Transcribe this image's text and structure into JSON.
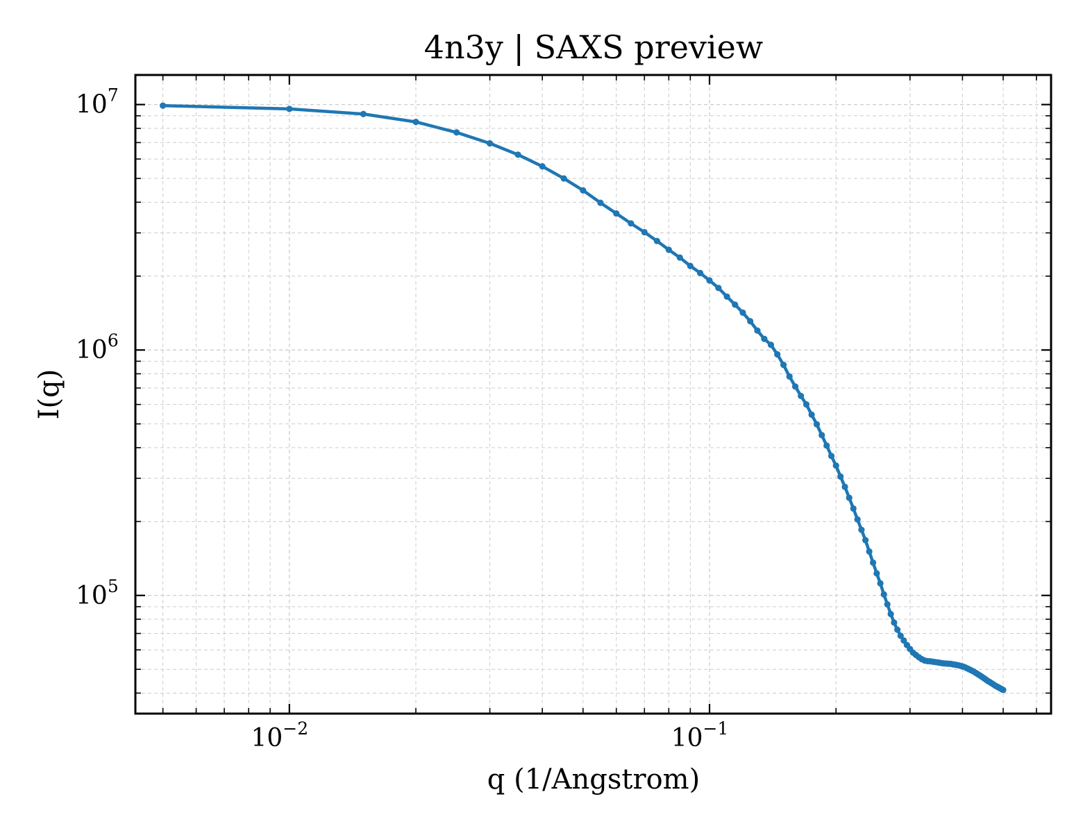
{
  "chart_data": {
    "type": "line",
    "title": "4n3y | SAXS preview",
    "xlabel": "q (1/Angstrom)",
    "ylabel": "I(q)",
    "xscale": "log",
    "yscale": "log",
    "xlim": [
      0.0043,
      0.65
    ],
    "ylim": [
      33000,
      13200000
    ],
    "grid": true,
    "grid_style": "dashed, major and minor",
    "x_ticks": [
      {
        "value": 0.01,
        "base": "10",
        "exp": "−2"
      },
      {
        "value": 0.1,
        "base": "10",
        "exp": "−1"
      }
    ],
    "y_ticks": [
      {
        "value": 100000,
        "base": "10",
        "exp": "5"
      },
      {
        "value": 1000000,
        "base": "10",
        "exp": "6"
      },
      {
        "value": 10000000,
        "base": "10",
        "exp": "7"
      }
    ],
    "series": [
      {
        "color": "#1f77b4",
        "marker": "dot",
        "x": [
          0.005,
          0.01,
          0.015,
          0.02,
          0.025,
          0.03,
          0.035,
          0.04,
          0.045,
          0.05,
          0.055,
          0.06,
          0.065,
          0.07,
          0.075,
          0.08,
          0.085,
          0.09,
          0.095,
          0.1,
          0.105,
          0.11,
          0.115,
          0.12,
          0.125,
          0.13,
          0.135,
          0.14,
          0.145,
          0.15,
          0.155,
          0.16,
          0.165,
          0.17,
          0.175,
          0.18,
          0.185,
          0.19,
          0.195,
          0.2,
          0.205,
          0.21,
          0.215,
          0.22,
          0.225,
          0.23,
          0.235,
          0.24,
          0.245,
          0.25,
          0.255,
          0.26,
          0.265,
          0.27,
          0.275,
          0.28,
          0.285,
          0.29,
          0.295,
          0.3,
          0.305,
          0.31,
          0.315,
          0.32,
          0.325,
          0.33,
          0.335,
          0.34,
          0.345,
          0.35,
          0.355,
          0.36,
          0.365,
          0.37,
          0.375,
          0.38,
          0.385,
          0.39,
          0.395,
          0.4,
          0.405,
          0.41,
          0.415,
          0.42,
          0.425,
          0.43,
          0.435,
          0.44,
          0.445,
          0.45,
          0.455,
          0.46,
          0.465,
          0.47,
          0.475,
          0.48,
          0.485,
          0.49,
          0.495,
          0.5
        ],
        "y": [
          9900000,
          9600000,
          9150000,
          8500000,
          7700000,
          6950000,
          6250000,
          5600000,
          5000000,
          4470000,
          3980000,
          3600000,
          3280000,
          3020000,
          2780000,
          2560000,
          2380000,
          2200000,
          2060000,
          1920000,
          1790000,
          1650000,
          1530000,
          1420000,
          1310000,
          1200000,
          1110000,
          1050000,
          960000,
          870000,
          780000,
          710000,
          650000,
          600000,
          545000,
          498000,
          450000,
          408000,
          370000,
          338000,
          305000,
          277000,
          250000,
          226000,
          204000,
          185000,
          168000,
          151000,
          136000,
          123000,
          112000,
          101000,
          92000,
          84000,
          77500,
          72500,
          68500,
          65500,
          62800,
          60500,
          58500,
          57200,
          56000,
          55000,
          54300,
          54000,
          53900,
          53700,
          53500,
          53300,
          53100,
          52900,
          52800,
          52700,
          52600,
          52400,
          52200,
          52000,
          51700,
          51400,
          51000,
          50500,
          50000,
          49500,
          49000,
          48400,
          47800,
          47200,
          46600,
          46000,
          45400,
          44800,
          44300,
          43800,
          43300,
          42800,
          42400,
          42000,
          41600,
          41200
        ]
      }
    ]
  }
}
